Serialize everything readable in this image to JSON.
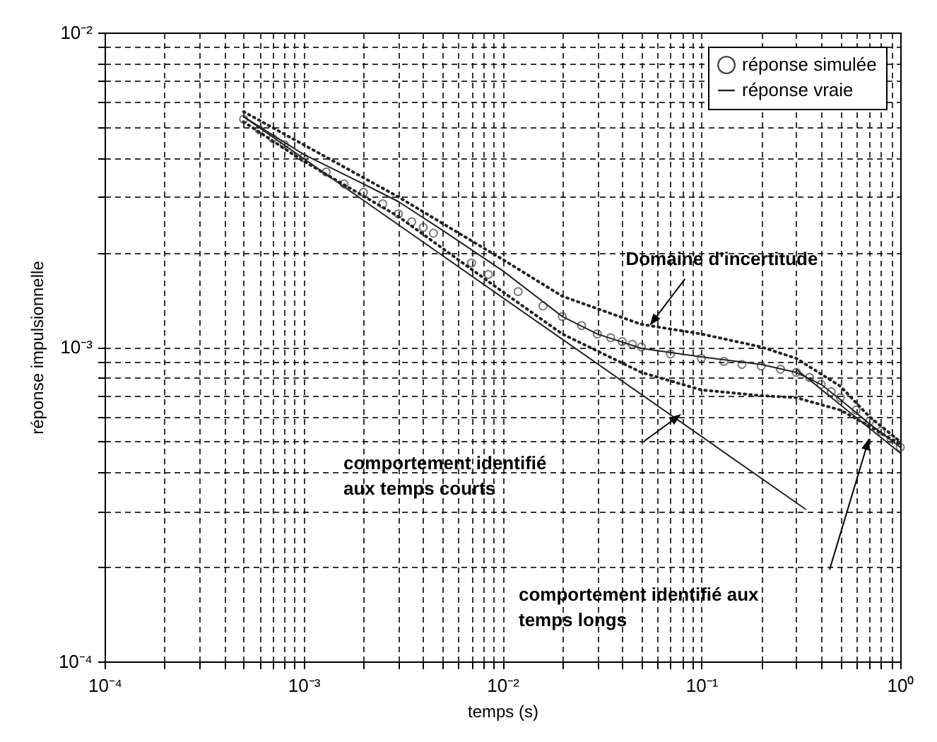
{
  "chart_data": {
    "type": "line",
    "xlabel": "temps (s)",
    "ylabel": "réponse impulsionnelle",
    "log": "xy",
    "grid": true,
    "legend": "top right",
    "xlim": [
      0.0001,
      1
    ],
    "ylim": [
      0.0001,
      0.01
    ],
    "xticks": [
      {
        "value": 0.0001,
        "label": "10⁻⁴"
      },
      {
        "value": 0.0002,
        "label": null
      },
      {
        "value": 0.0003,
        "label": null
      },
      {
        "value": 0.0004,
        "label": null
      },
      {
        "value": 0.0005,
        "label": null
      },
      {
        "value": 0.0006,
        "label": null
      },
      {
        "value": 0.0007,
        "label": null
      },
      {
        "value": 0.0008,
        "label": null
      },
      {
        "value": 0.0009,
        "label": null
      },
      {
        "value": 0.001,
        "label": "10⁻³"
      },
      {
        "value": 0.002,
        "label": null
      },
      {
        "value": 0.003,
        "label": null
      },
      {
        "value": 0.004,
        "label": null
      },
      {
        "value": 0.005,
        "label": null
      },
      {
        "value": 0.006,
        "label": null
      },
      {
        "value": 0.007,
        "label": null
      },
      {
        "value": 0.008,
        "label": null
      },
      {
        "value": 0.009,
        "label": null
      },
      {
        "value": 0.01,
        "label": "10⁻²"
      },
      {
        "value": 0.02,
        "label": null
      },
      {
        "value": 0.03,
        "label": null
      },
      {
        "value": 0.04,
        "label": null
      },
      {
        "value": 0.05,
        "label": null
      },
      {
        "value": 0.06,
        "label": null
      },
      {
        "value": 0.07,
        "label": null
      },
      {
        "value": 0.08,
        "label": null
      },
      {
        "value": 0.09,
        "label": null
      },
      {
        "value": 0.1,
        "label": "10⁻¹"
      },
      {
        "value": 0.2,
        "label": null
      },
      {
        "value": 0.3,
        "label": null
      },
      {
        "value": 0.4,
        "label": null
      },
      {
        "value": 0.5,
        "label": null
      },
      {
        "value": 0.6,
        "label": null
      },
      {
        "value": 0.7,
        "label": null
      },
      {
        "value": 0.8,
        "label": null
      },
      {
        "value": 0.9,
        "label": null
      },
      {
        "value": 1,
        "label": "10⁰"
      }
    ],
    "yticks": [
      {
        "value": 0.0001,
        "label": "10⁻⁴"
      },
      {
        "value": 0.0002,
        "label": null
      },
      {
        "value": 0.0003,
        "label": null
      },
      {
        "value": 0.0004,
        "label": null
      },
      {
        "value": 0.0005,
        "label": null
      },
      {
        "value": 0.0006,
        "label": null
      },
      {
        "value": 0.0007,
        "label": null
      },
      {
        "value": 0.0008,
        "label": null
      },
      {
        "value": 0.0009,
        "label": null
      },
      {
        "value": 0.001,
        "label": "10⁻³"
      },
      {
        "value": 0.002,
        "label": null
      },
      {
        "value": 0.003,
        "label": null
      },
      {
        "value": 0.004,
        "label": null
      },
      {
        "value": 0.005,
        "label": null
      },
      {
        "value": 0.006,
        "label": null
      },
      {
        "value": 0.007,
        "label": null
      },
      {
        "value": 0.008,
        "label": null
      },
      {
        "value": 0.009,
        "label": null
      },
      {
        "value": 0.01,
        "label": "10⁻²"
      }
    ],
    "series": [
      {
        "name": "réponse simulée",
        "type": "scatter",
        "marker": "circle",
        "color": "#444444",
        "x": [
          0.0005,
          0.0006,
          0.0007,
          0.0008,
          0.001,
          0.0013,
          0.0016,
          0.002,
          0.0025,
          0.003,
          0.0035,
          0.004,
          0.0045,
          0.007,
          0.0085,
          0.012,
          0.016,
          0.02,
          0.025,
          0.03,
          0.035,
          0.04,
          0.045,
          0.05,
          0.07,
          0.1,
          0.13,
          0.16,
          0.2,
          0.25,
          0.3,
          0.35,
          0.4,
          0.45,
          0.5,
          0.6,
          0.7,
          0.8,
          0.9,
          1
        ],
        "values": [
          0.0053,
          0.0049,
          0.0046,
          0.0044,
          0.004,
          0.0036,
          0.0033,
          0.0031,
          0.00285,
          0.00265,
          0.0025,
          0.0024,
          0.0023,
          0.00185,
          0.0017,
          0.0015,
          0.00135,
          0.00125,
          0.00117,
          0.0011,
          0.00107,
          0.00104,
          0.00102,
          0.001,
          0.00095,
          0.00092,
          0.0009,
          0.00088,
          0.00087,
          0.00085,
          0.00083,
          0.0008,
          0.00076,
          0.00072,
          0.00069,
          0.00063,
          0.00058,
          0.00054,
          0.00051,
          0.00048
        ]
      },
      {
        "name": "réponse vraie",
        "marker": "none",
        "line_style": "solid",
        "color": "#222222",
        "x": [
          0.0005,
          0.001,
          0.002,
          0.003,
          0.005,
          0.01,
          0.02,
          0.03,
          0.05,
          0.1,
          0.2,
          0.3,
          0.4,
          0.5,
          0.7,
          1
        ],
        "values": [
          0.0054,
          0.0041,
          0.0033,
          0.0029,
          0.00235,
          0.00175,
          0.00125,
          0.0011,
          0.00099,
          0.00093,
          0.00088,
          0.00083,
          0.00076,
          0.00068,
          0.00057,
          0.00048
        ]
      },
      {
        "marker": "none",
        "line_style": "dotted",
        "color": "#222222",
        "x": [
          0.0005,
          0.001,
          0.003,
          0.01,
          0.02,
          0.05,
          0.1,
          0.2,
          0.3,
          0.5,
          0.7,
          1
        ],
        "values": [
          0.0056,
          0.0044,
          0.003,
          0.0019,
          0.00145,
          0.00118,
          0.0011,
          0.001,
          0.00092,
          0.00075,
          0.0006,
          0.0005
        ]
      },
      {
        "marker": "none",
        "line_style": "dotted",
        "color": "#222222",
        "x": [
          0.0005,
          0.001,
          0.003,
          0.01,
          0.02,
          0.05,
          0.1,
          0.2,
          0.3,
          0.5,
          0.7,
          1
        ],
        "values": [
          0.0052,
          0.0039,
          0.0026,
          0.0015,
          0.0011,
          0.00083,
          0.00073,
          0.0007,
          0.00069,
          0.00063,
          0.00056,
          0.00049
        ]
      },
      {
        "marker": "none",
        "line_style": "solid",
        "color": "#222222",
        "x": [
          0.0005,
          0.334
        ],
        "values": [
          0.0054,
          0.000305
        ]
      },
      {
        "marker": "none",
        "line_style": "solid",
        "color": "#222222",
        "x": [
          0.3,
          1
        ],
        "values": [
          0.00085,
          0.00046
        ]
      }
    ],
    "annotations": [
      {
        "text": "Domaine d'incertitude",
        "x": 0.055,
        "y": 0.00117
      },
      "comportement identifié\naux temps courts",
      "comportement identifié aux\ntemps longs"
    ]
  }
}
